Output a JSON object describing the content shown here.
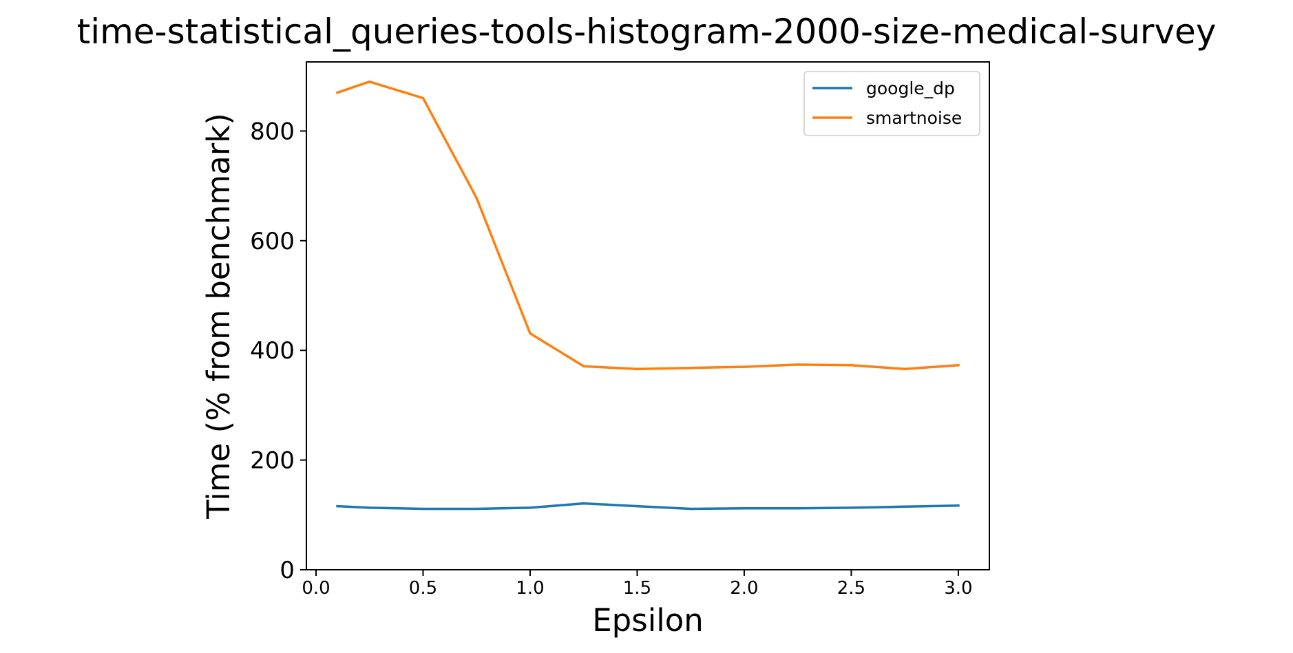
{
  "chart_data": {
    "type": "line",
    "title": "time-statistical_queries-tools-histogram-2000-size-medical-survey",
    "xlabel": "Epsilon",
    "ylabel": "Time (% from benchmark)",
    "x": [
      0.1,
      0.25,
      0.5,
      0.75,
      1.0,
      1.25,
      1.5,
      1.75,
      2.0,
      2.25,
      2.5,
      2.75,
      3.0
    ],
    "series": [
      {
        "name": "google_dp",
        "color": "#1f77b4",
        "values": [
          116,
          113,
          111,
          111,
          113,
          121,
          116,
          111,
          112,
          112,
          113,
          115,
          117
        ]
      },
      {
        "name": "smartnoise",
        "color": "#ff7f0e",
        "values": [
          870,
          890,
          860,
          678,
          431,
          371,
          366,
          368,
          370,
          374,
          373,
          366,
          373
        ]
      }
    ],
    "xlim": [
      -0.045,
      3.145
    ],
    "ylim": [
      0,
      926
    ],
    "xticks": [
      0.0,
      0.5,
      1.0,
      1.5,
      2.0,
      2.5,
      3.0
    ],
    "xtick_labels": [
      "0.0",
      "0.5",
      "1.0",
      "1.5",
      "2.0",
      "2.5",
      "3.0"
    ],
    "yticks": [
      0,
      200,
      400,
      600,
      800
    ],
    "ytick_labels": [
      "0",
      "200",
      "400",
      "600",
      "800"
    ],
    "grid": false,
    "legend_position": "top-right"
  }
}
